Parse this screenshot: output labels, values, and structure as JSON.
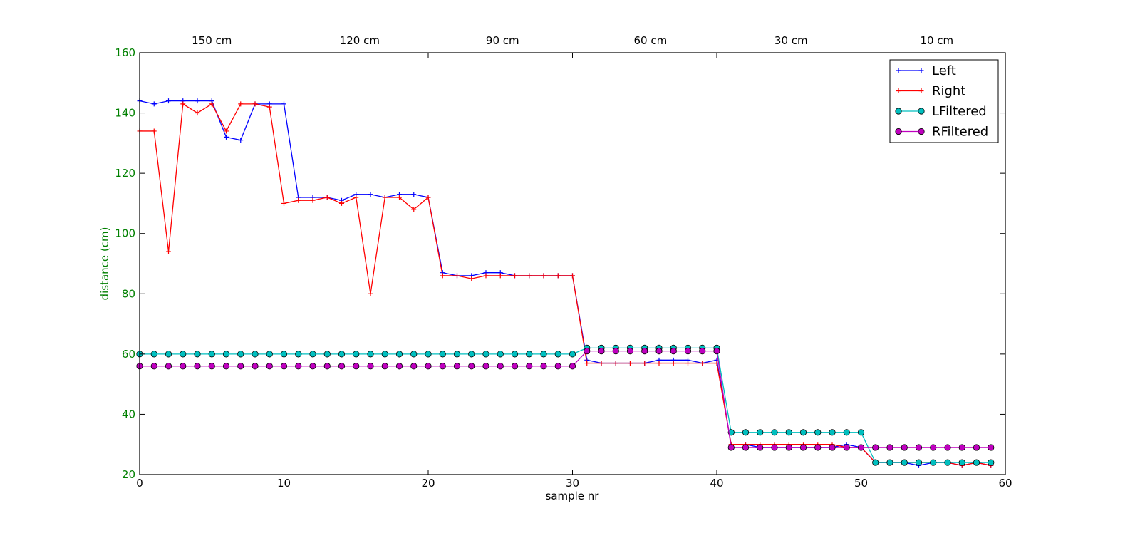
{
  "chart_data": {
    "type": "line",
    "title": "",
    "xlabel": "sample nr",
    "ylabel": "distance (cm)",
    "xlim": [
      0,
      60
    ],
    "ylim": [
      20,
      160
    ],
    "xticks": [
      0,
      10,
      20,
      30,
      40,
      50,
      60
    ],
    "yticks": [
      20,
      40,
      60,
      80,
      100,
      120,
      140,
      160
    ],
    "top_labels": [
      {
        "x": 5,
        "label": "150 cm"
      },
      {
        "x": 15.25,
        "label": "120 cm"
      },
      {
        "x": 25.15,
        "label": "90 cm"
      },
      {
        "x": 35.4,
        "label": "60 cm"
      },
      {
        "x": 45.15,
        "label": "30 cm"
      },
      {
        "x": 55.25,
        "label": "10 cm"
      }
    ],
    "grid": false,
    "legend_position": "top-right",
    "series": [
      {
        "name": "Left",
        "color": "#0000ff",
        "marker": "plus",
        "values": [
          144,
          143,
          144,
          144,
          144,
          144,
          132,
          131,
          143,
          143,
          143,
          112,
          112,
          112,
          111,
          113,
          113,
          112,
          113,
          113,
          112,
          87,
          86,
          86,
          87,
          87,
          86,
          86,
          86,
          86,
          86,
          58,
          57,
          57,
          57,
          57,
          58,
          58,
          58,
          57,
          58,
          30,
          30,
          29,
          29,
          29,
          29,
          29,
          29,
          30,
          29,
          24,
          24,
          24,
          23,
          24,
          24,
          23,
          24,
          23
        ]
      },
      {
        "name": "Right",
        "color": "#ff0000",
        "marker": "plus",
        "values": [
          134,
          134,
          94,
          143,
          140,
          143,
          134,
          143,
          143,
          142,
          110,
          111,
          111,
          112,
          110,
          112,
          80,
          112,
          112,
          108,
          112,
          86,
          86,
          85,
          86,
          86,
          86,
          86,
          86,
          86,
          86,
          57,
          57,
          57,
          57,
          57,
          57,
          57,
          57,
          57,
          57,
          30,
          30,
          30,
          30,
          30,
          30,
          30,
          30,
          29,
          29,
          24,
          24,
          24,
          24,
          24,
          24,
          23,
          24,
          23
        ]
      },
      {
        "name": "LFiltered",
        "color": "#00bfbf",
        "marker": "circle",
        "values": [
          60,
          60,
          60,
          60,
          60,
          60,
          60,
          60,
          60,
          60,
          60,
          60,
          60,
          60,
          60,
          60,
          60,
          60,
          60,
          60,
          60,
          60,
          60,
          60,
          60,
          60,
          60,
          60,
          60,
          60,
          60,
          62,
          62,
          62,
          62,
          62,
          62,
          62,
          62,
          62,
          62,
          34,
          34,
          34,
          34,
          34,
          34,
          34,
          34,
          34,
          34,
          24,
          24,
          24,
          24,
          24,
          24,
          24,
          24,
          24
        ]
      },
      {
        "name": "RFiltered",
        "color": "#bf00bf",
        "marker": "circle",
        "values": [
          56,
          56,
          56,
          56,
          56,
          56,
          56,
          56,
          56,
          56,
          56,
          56,
          56,
          56,
          56,
          56,
          56,
          56,
          56,
          56,
          56,
          56,
          56,
          56,
          56,
          56,
          56,
          56,
          56,
          56,
          56,
          61,
          61,
          61,
          61,
          61,
          61,
          61,
          61,
          61,
          61,
          29,
          29,
          29,
          29,
          29,
          29,
          29,
          29,
          29,
          29,
          29,
          29,
          29,
          29,
          29,
          29,
          29,
          29,
          29
        ]
      }
    ]
  }
}
